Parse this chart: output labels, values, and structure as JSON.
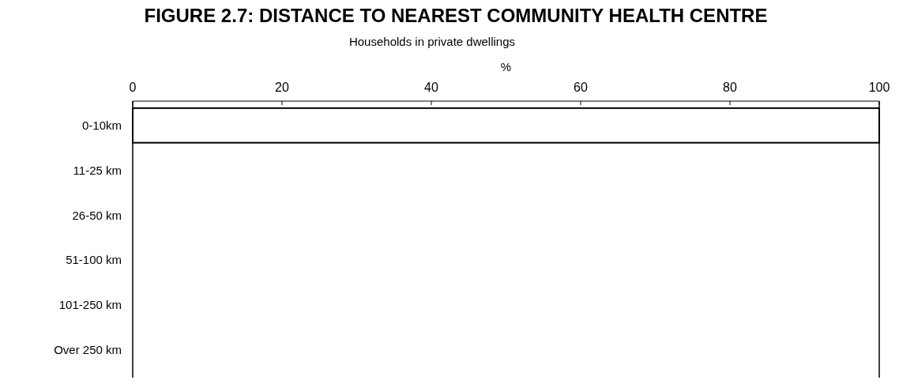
{
  "chart_data": {
    "type": "bar",
    "orientation": "horizontal",
    "title": "FIGURE 2.7: DISTANCE TO NEAREST COMMUNITY HEALTH CENTRE",
    "subtitle": "Households in private dwellings",
    "xlabel": "%",
    "categories": [
      "0-10km",
      "11-25 km",
      "26-50 km",
      "51-100 km",
      "101-250 km",
      "Over 250 km"
    ],
    "values": [
      100,
      0,
      0,
      0,
      0,
      0
    ],
    "color": "#ffffff",
    "xlim": [
      0,
      100
    ],
    "xticks": [
      0,
      20,
      40,
      60,
      80,
      100
    ],
    "grid": false
  }
}
